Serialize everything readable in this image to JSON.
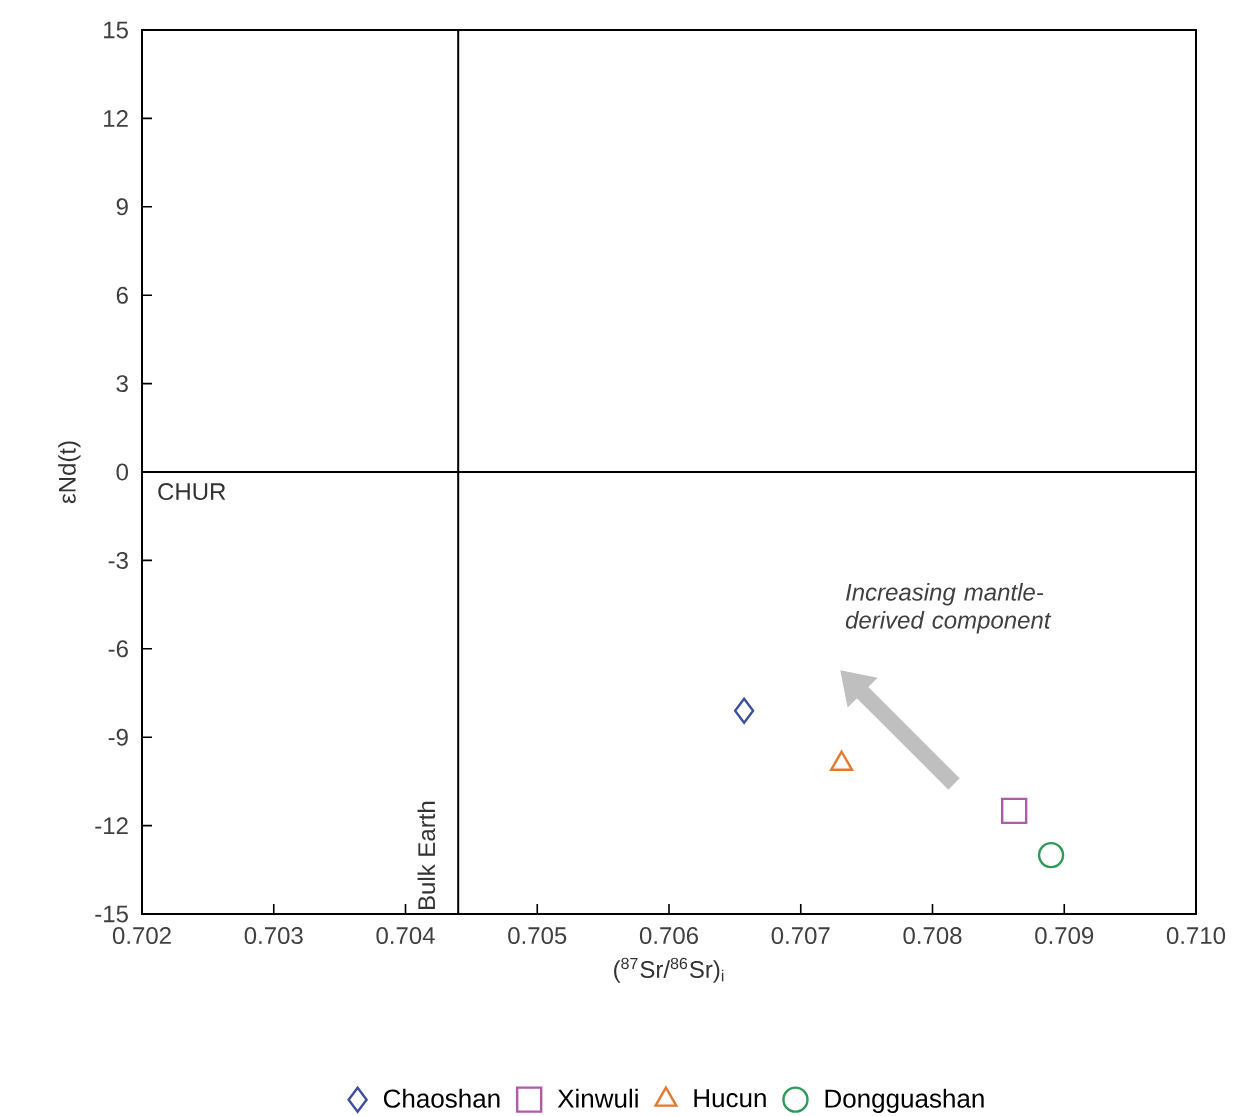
{
  "chart_data": {
    "type": "scatter",
    "xlabel": "($^{87}$Sr/$^{86}$Sr)$_{i}$",
    "ylabel": "εNd(t)",
    "xlim": [
      0.702,
      0.71
    ],
    "ylim": [
      -15,
      15
    ],
    "xticks": [
      0.702,
      0.703,
      0.704,
      0.705,
      0.706,
      0.707,
      0.708,
      0.709,
      {
        "value": 0.71,
        "label": "0.710"
      }
    ],
    "yticks": [
      -15,
      -12,
      -9,
      -6,
      -3,
      0,
      3,
      6,
      9,
      12,
      15
    ],
    "legend": "bottom",
    "grid": false,
    "ref_lines": [
      {
        "axis": "y",
        "value": 0,
        "label": "CHUR",
        "color": "#000000"
      },
      {
        "axis": "x",
        "value": 0.7044,
        "label": "Bulk Earth",
        "color": "#000000"
      }
    ],
    "annotations": [
      "Increasing mantle-derived component"
    ],
    "series": [
      {
        "name": "Chaoshan",
        "color": "#3f4fa0",
        "marker": "diamond",
        "x": [
          0.70657
        ],
        "values": [
          -8.1
        ]
      },
      {
        "name": "Xinwuli",
        "color": "#b05aa8",
        "marker": "square",
        "x": [
          0.70862
        ],
        "values": [
          -11.5
        ]
      },
      {
        "name": "Hucun",
        "color": "#e8772e",
        "marker": "triangle",
        "x": [
          0.70731
        ],
        "values": [
          -9.9
        ]
      },
      {
        "name": "Dongguashan",
        "color": "#2e9a5a",
        "marker": "circle",
        "x": [
          0.7089
        ],
        "values": [
          -13.0
        ]
      }
    ]
  }
}
